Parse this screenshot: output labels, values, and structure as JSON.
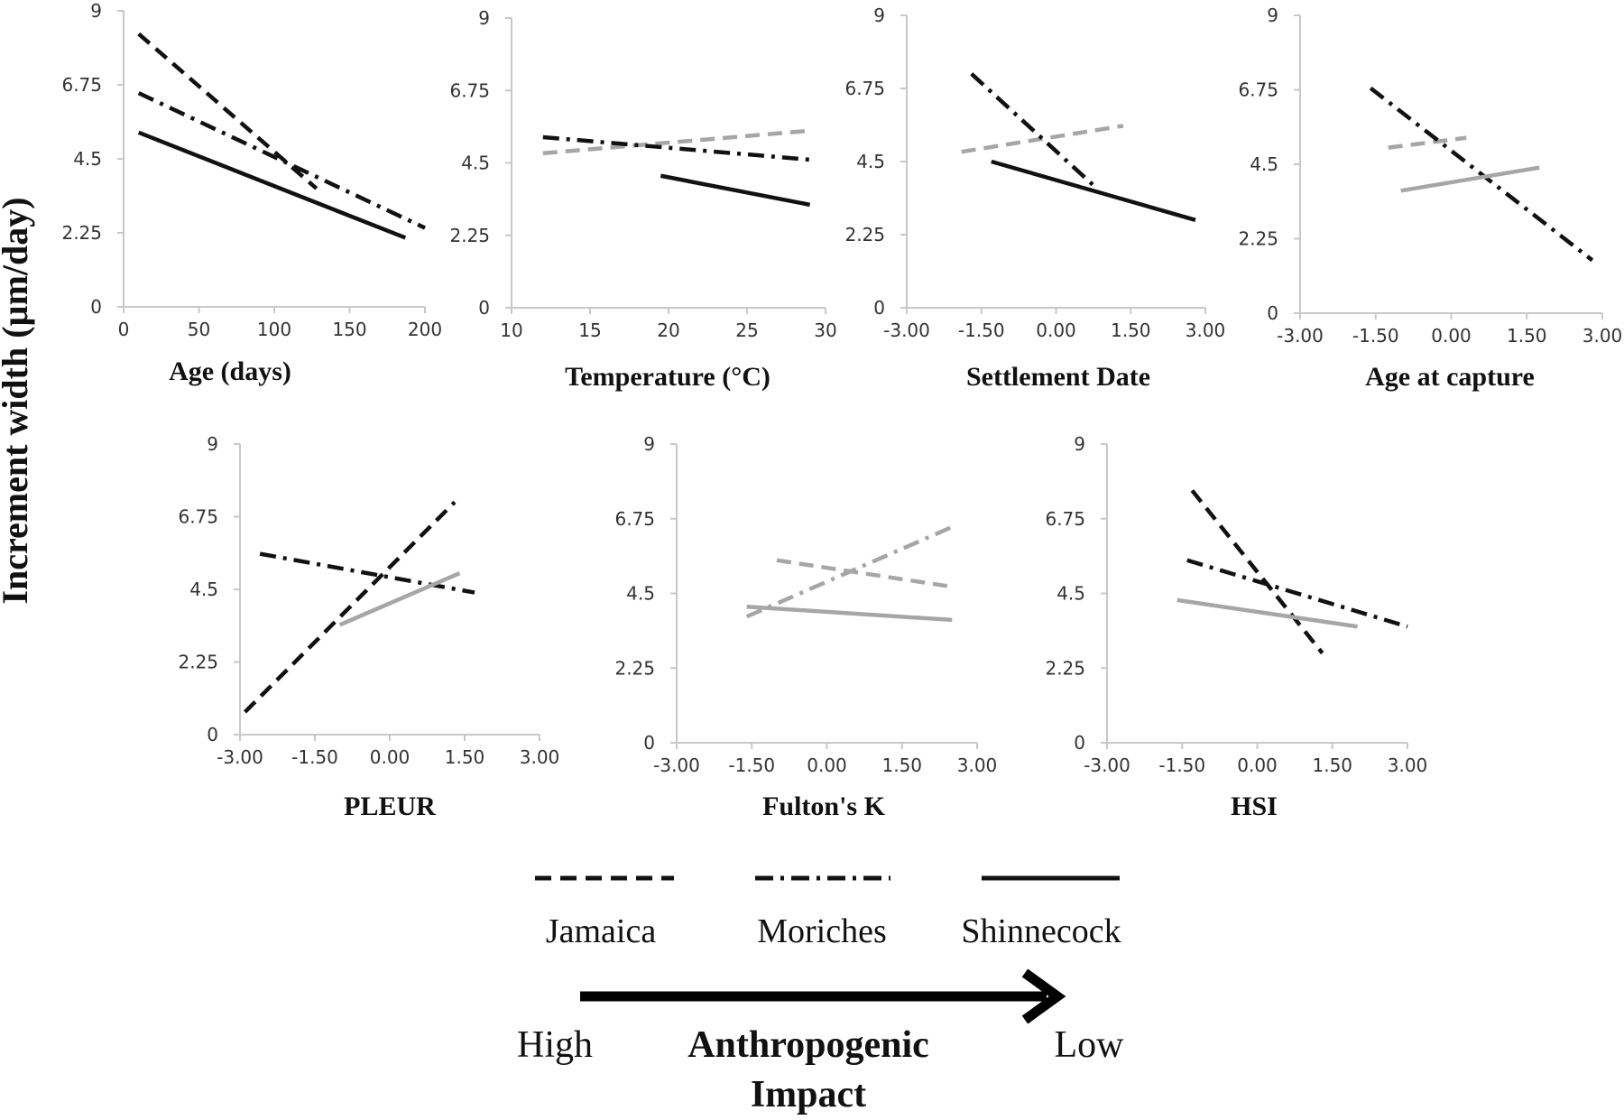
{
  "y_axis_label": "Increment width (µm/day)",
  "colors": {
    "black": "#111111",
    "gray": "#a6a6a6",
    "axis": "#c8c8c8"
  },
  "legend": {
    "items": [
      {
        "label": "Jamaica",
        "dash": "dashed"
      },
      {
        "label": "Moriches",
        "dash": "dashdot"
      },
      {
        "label": "Shinnecock",
        "dash": "solid"
      }
    ],
    "impact": {
      "high": "High",
      "title_line1": "Anthropogenic",
      "title_line2": "Impact",
      "low": "Low"
    }
  },
  "chart_data": [
    {
      "type": "line",
      "xlabel": "Age (days)",
      "xlim": [
        0,
        200
      ],
      "xticks": [
        0,
        50,
        100,
        150,
        200
      ],
      "xtick_labels": [
        "0",
        "50",
        "100",
        "150",
        "200"
      ],
      "ylim": [
        0,
        9
      ],
      "yticks": [
        0,
        2.25,
        4.5,
        6.75,
        9
      ],
      "ytick_labels": [
        "0",
        "2.25",
        "4.5",
        "6.75",
        "9"
      ],
      "series": [
        {
          "name": "Jamaica",
          "dash": "dashed",
          "color": "black",
          "x": [
            10,
            128
          ],
          "y": [
            8.3,
            3.6
          ]
        },
        {
          "name": "Moriches",
          "dash": "dashdot",
          "color": "black",
          "x": [
            10,
            200
          ],
          "y": [
            6.5,
            2.4
          ]
        },
        {
          "name": "Shinnecock",
          "dash": "solid",
          "color": "black",
          "x": [
            10,
            187
          ],
          "y": [
            5.3,
            2.1
          ]
        }
      ]
    },
    {
      "type": "line",
      "xlabel": "Temperature  (°C)",
      "xlim": [
        10,
        30
      ],
      "xticks": [
        10,
        15,
        20,
        25,
        30
      ],
      "xtick_labels": [
        "10",
        "15",
        "20",
        "25",
        "30"
      ],
      "ylim": [
        0,
        9
      ],
      "yticks": [
        0,
        2.25,
        4.5,
        6.75,
        9
      ],
      "ytick_labels": [
        "0",
        "2.25",
        "4.5",
        "6.75",
        "9"
      ],
      "series": [
        {
          "name": "Jamaica",
          "dash": "dashed",
          "color": "gray",
          "x": [
            12,
            29
          ],
          "y": [
            4.8,
            5.5
          ]
        },
        {
          "name": "Moriches",
          "dash": "dashdot",
          "color": "black",
          "x": [
            12,
            29
          ],
          "y": [
            5.3,
            4.6
          ]
        },
        {
          "name": "Shinnecock",
          "dash": "solid",
          "color": "black",
          "x": [
            19.5,
            29
          ],
          "y": [
            4.1,
            3.2
          ]
        }
      ]
    },
    {
      "type": "line",
      "xlabel": "Settlement Date",
      "xlim": [
        -3,
        3
      ],
      "xticks": [
        -3,
        -1.5,
        0,
        1.5,
        3
      ],
      "xtick_labels": [
        "-3.00",
        "-1.50",
        "0.00",
        "1.50",
        "3.00"
      ],
      "ylim": [
        0,
        9
      ],
      "yticks": [
        0,
        2.25,
        4.5,
        6.75,
        9
      ],
      "ytick_labels": [
        "0",
        "2.25",
        "4.5",
        "6.75",
        "9"
      ],
      "series": [
        {
          "name": "Jamaica",
          "dash": "dashed",
          "color": "gray",
          "x": [
            -1.9,
            1.35
          ],
          "y": [
            4.8,
            5.6
          ]
        },
        {
          "name": "Moriches",
          "dash": "dashdot",
          "color": "black",
          "x": [
            -1.7,
            0.8
          ],
          "y": [
            7.2,
            3.7
          ]
        },
        {
          "name": "Shinnecock",
          "dash": "solid",
          "color": "black",
          "x": [
            -1.3,
            2.8
          ],
          "y": [
            4.5,
            2.7
          ]
        }
      ]
    },
    {
      "type": "line",
      "xlabel": "Age at capture",
      "xlim": [
        -3,
        3
      ],
      "xticks": [
        -3,
        -1.5,
        0,
        1.5,
        3
      ],
      "xtick_labels": [
        "-3.00",
        "-1.50",
        "0.00",
        "1.50",
        "3.00"
      ],
      "ylim": [
        0,
        9
      ],
      "yticks": [
        0,
        2.25,
        4.5,
        6.75,
        9
      ],
      "ytick_labels": [
        "0",
        "2.25",
        "4.5",
        "6.75",
        "9"
      ],
      "series": [
        {
          "name": "Jamaica",
          "dash": "dashed",
          "color": "gray",
          "x": [
            -1.25,
            0.3
          ],
          "y": [
            5.0,
            5.3
          ]
        },
        {
          "name": "Moriches",
          "dash": "dashdot",
          "color": "black",
          "x": [
            -1.6,
            2.8
          ],
          "y": [
            6.8,
            1.6
          ]
        },
        {
          "name": "Shinnecock",
          "dash": "solid",
          "color": "gray",
          "x": [
            -1.0,
            1.75
          ],
          "y": [
            3.7,
            4.4
          ]
        }
      ]
    },
    {
      "type": "line",
      "xlabel": "PLEUR",
      "xlim": [
        -3,
        3
      ],
      "xticks": [
        -3,
        -1.5,
        0,
        1.5,
        3
      ],
      "xtick_labels": [
        "-3.00",
        "-1.50",
        "0.00",
        "1.50",
        "3.00"
      ],
      "ylim": [
        0,
        9
      ],
      "yticks": [
        0,
        2.25,
        4.5,
        6.75,
        9
      ],
      "ytick_labels": [
        "0",
        "2.25",
        "4.5",
        "6.75",
        "9"
      ],
      "series": [
        {
          "name": "Jamaica",
          "dash": "dashed",
          "color": "black",
          "x": [
            -2.9,
            1.3
          ],
          "y": [
            0.7,
            7.2
          ]
        },
        {
          "name": "Moriches",
          "dash": "dashdot",
          "color": "black",
          "x": [
            -2.6,
            1.7
          ],
          "y": [
            5.6,
            4.4
          ]
        },
        {
          "name": "Shinnecock",
          "dash": "solid",
          "color": "gray",
          "x": [
            -1.0,
            1.4
          ],
          "y": [
            3.4,
            5.0
          ]
        }
      ]
    },
    {
      "type": "line",
      "xlabel": "Fulton's K",
      "xlim": [
        -3,
        3
      ],
      "xticks": [
        -3,
        -1.5,
        0,
        1.5,
        3
      ],
      "xtick_labels": [
        "-3.00",
        "-1.50",
        "0.00",
        "1.50",
        "3.00"
      ],
      "ylim": [
        0,
        9
      ],
      "yticks": [
        0,
        2.25,
        4.5,
        6.75,
        9
      ],
      "ytick_labels": [
        "0",
        "2.25",
        "4.5",
        "6.75",
        "9"
      ],
      "series": [
        {
          "name": "Jamaica",
          "dash": "dashed",
          "color": "gray",
          "x": [
            -1.0,
            2.5
          ],
          "y": [
            5.5,
            4.7
          ]
        },
        {
          "name": "Moriches",
          "dash": "dashdot",
          "color": "gray",
          "x": [
            -1.6,
            2.5
          ],
          "y": [
            3.8,
            6.5
          ]
        },
        {
          "name": "Shinnecock",
          "dash": "solid",
          "color": "gray",
          "x": [
            -1.6,
            2.5
          ],
          "y": [
            4.1,
            3.7
          ]
        }
      ]
    },
    {
      "type": "line",
      "xlabel": "HSI",
      "xlim": [
        -3,
        3
      ],
      "xticks": [
        -3,
        -1.5,
        0,
        1.5,
        3
      ],
      "xtick_labels": [
        "-3.00",
        "-1.50",
        "0.00",
        "1.50",
        "3.00"
      ],
      "ylim": [
        0,
        9
      ],
      "yticks": [
        0,
        2.25,
        4.5,
        6.75,
        9
      ],
      "ytick_labels": [
        "0",
        "2.25",
        "4.5",
        "6.75",
        "9"
      ],
      "series": [
        {
          "name": "Jamaica",
          "dash": "dashed",
          "color": "black",
          "x": [
            -1.3,
            1.3
          ],
          "y": [
            7.6,
            2.7
          ]
        },
        {
          "name": "Moriches",
          "dash": "dashdot",
          "color": "black",
          "x": [
            -1.4,
            3.0
          ],
          "y": [
            5.5,
            3.5
          ]
        },
        {
          "name": "Shinnecock",
          "dash": "solid",
          "color": "gray",
          "x": [
            -1.6,
            2.0
          ],
          "y": [
            4.3,
            3.5
          ]
        }
      ]
    }
  ]
}
